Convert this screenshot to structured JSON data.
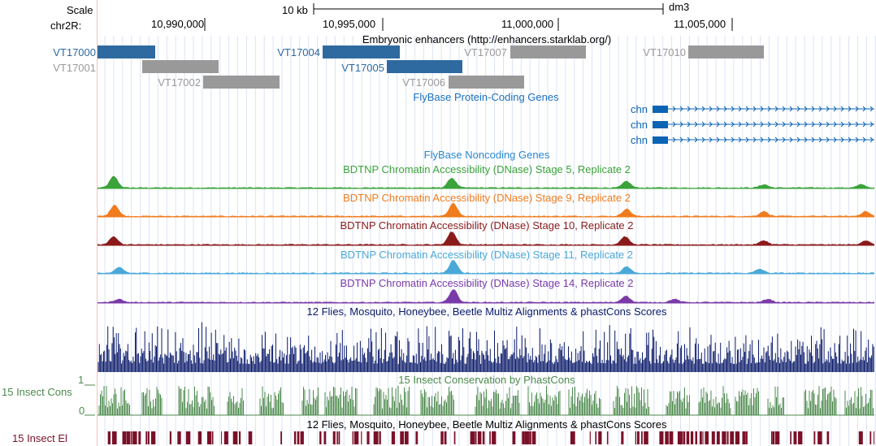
{
  "ruler": {
    "scale_label": "Scale",
    "chrom_label": "chr2R:",
    "scale_bar_text": "10 kb",
    "assembly": "dm3",
    "ticks": [
      "10,990,000",
      "10,995,000",
      "11,000,000",
      "11,005,000"
    ]
  },
  "enhancers": {
    "title": "Embryonic enhancers (http://enhancers.starklab.org/)",
    "items": [
      {
        "id": "VT17000",
        "highlight": true
      },
      {
        "id": "VT17001",
        "highlight": false
      },
      {
        "id": "VT17002",
        "highlight": false
      },
      {
        "id": "VT17004",
        "highlight": true
      },
      {
        "id": "VT17005",
        "highlight": true
      },
      {
        "id": "VT17006",
        "highlight": false
      },
      {
        "id": "VT17007",
        "highlight": false
      },
      {
        "id": "VT17010",
        "highlight": false
      }
    ]
  },
  "protein_genes": {
    "title": "FlyBase Protein-Coding Genes",
    "genes": [
      "chn",
      "chn",
      "chn"
    ]
  },
  "noncoding": {
    "title": "FlyBase Noncoding Genes"
  },
  "dnase": [
    {
      "title": "BDTNP Chromatin Accessibility (DNase) Stage 5, Replicate 2",
      "color": "#3aa33a"
    },
    {
      "title": "BDTNP Chromatin Accessibility (DNase) Stage 9, Replicate 2",
      "color": "#f07c1e"
    },
    {
      "title": "BDTNP Chromatin Accessibility (DNase) Stage 10, Replicate 2",
      "color": "#8b1a1a"
    },
    {
      "title": "BDTNP Chromatin Accessibility (DNase) Stage 11, Replicate 2",
      "color": "#4aa8d8"
    },
    {
      "title": "BDTNP Chromatin Accessibility (DNase) Stage 14, Replicate 2",
      "color": "#7a3aa8"
    }
  ],
  "multiz": {
    "title": "12 Flies, Mosquito, Honeybee, Beetle Multiz Alignments & phastCons Scores"
  },
  "insect_cons": {
    "title": "15 Insect Conservation by PhastCons",
    "side_label": "15 Insect Cons",
    "ymax": "1",
    "ymin": "0"
  },
  "insect_el": {
    "title": "12 Flies, Mosquito, Honeybee, Beetle Multiz Alignments & phastCons Scores",
    "side_label": "15 Insect El"
  },
  "colors": {
    "enhancer_blue": "#2e6aa0",
    "enhancer_gray": "#999999",
    "gene_blue": "#0b64b4",
    "multiz_navy": "#0a1a6a",
    "cons_green": "#4c8a4c",
    "el_maroon": "#7a1028"
  }
}
